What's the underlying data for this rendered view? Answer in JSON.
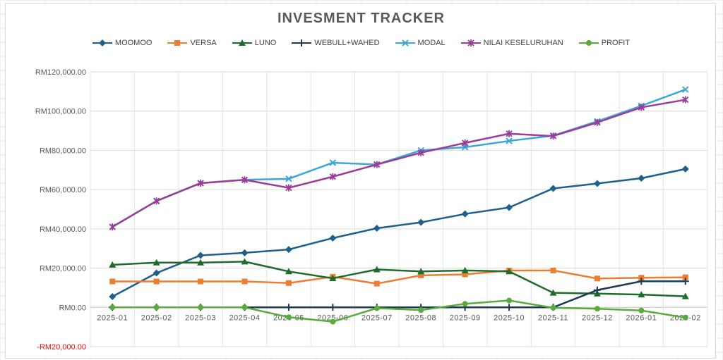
{
  "chart_data": {
    "type": "line",
    "title": "INVESMENT TRACKER",
    "xlabel": "",
    "ylabel": "",
    "ylim": [
      -20000,
      120000
    ],
    "yticks": [
      {
        "value": 120000,
        "label": "RM120,000.00"
      },
      {
        "value": 100000,
        "label": "RM100,000.00"
      },
      {
        "value": 80000,
        "label": "RM80,000.00"
      },
      {
        "value": 60000,
        "label": "RM60,000.00"
      },
      {
        "value": 40000,
        "label": "RM40,000.00"
      },
      {
        "value": 20000,
        "label": "RM20,000.00"
      },
      {
        "value": 0,
        "label": "RM0.00"
      },
      {
        "value": -20000,
        "label": "-RM20,000.00",
        "color": "#ff0000"
      }
    ],
    "categories": [
      "2025-01",
      "2025-02",
      "2025-03",
      "2025-04",
      "2025-05",
      "2025-06",
      "2025-07",
      "2025-08",
      "2025-09",
      "2025-10",
      "2025-11",
      "2025-12",
      "2026-01",
      "2026-02"
    ],
    "legend_position": "top",
    "series": [
      {
        "name": "MOOMOO",
        "color": "#1f5f8b",
        "marker": "diamond",
        "values": [
          5500,
          17500,
          26500,
          27800,
          29500,
          35300,
          40300,
          43300,
          47600,
          50900,
          60600,
          63100,
          65800,
          70500
        ]
      },
      {
        "name": "VERSA",
        "color": "#ed7d31",
        "marker": "square",
        "values": [
          13200,
          13200,
          13200,
          13200,
          12400,
          15600,
          12100,
          16300,
          16800,
          18800,
          18800,
          14700,
          15100,
          15300
        ]
      },
      {
        "name": "LUNO",
        "color": "#1e6b2c",
        "marker": "triangle",
        "values": [
          21700,
          22800,
          22800,
          23300,
          18300,
          14800,
          19300,
          18300,
          18800,
          18300,
          7400,
          7000,
          6500,
          5600
        ]
      },
      {
        "name": "WEBULL+WAHED",
        "color": "#1b3a54",
        "marker": "plus",
        "values": [
          0,
          0,
          0,
          0,
          0,
          0,
          0,
          0,
          0,
          0,
          0,
          8800,
          13300,
          13300
        ]
      },
      {
        "name": "MODAL",
        "color": "#3ca6d8",
        "marker": "x",
        "values": [
          41000,
          54200,
          63300,
          65000,
          65500,
          73700,
          72800,
          80000,
          81600,
          84800,
          87500,
          94800,
          102700,
          111000
        ]
      },
      {
        "name": "NILAI KESELURUHAN",
        "color": "#9b3b9a",
        "marker": "star",
        "values": [
          41000,
          54200,
          63300,
          65000,
          60900,
          66600,
          72800,
          78800,
          83800,
          88500,
          87300,
          94200,
          101900,
          105800
        ]
      },
      {
        "name": "PROFIT",
        "color": "#5aab3d",
        "marker": "circle",
        "values": [
          0,
          0,
          0,
          0,
          -5000,
          -7300,
          -400,
          -1400,
          1800,
          3500,
          -200,
          -700,
          -1600,
          -5200
        ]
      }
    ]
  }
}
